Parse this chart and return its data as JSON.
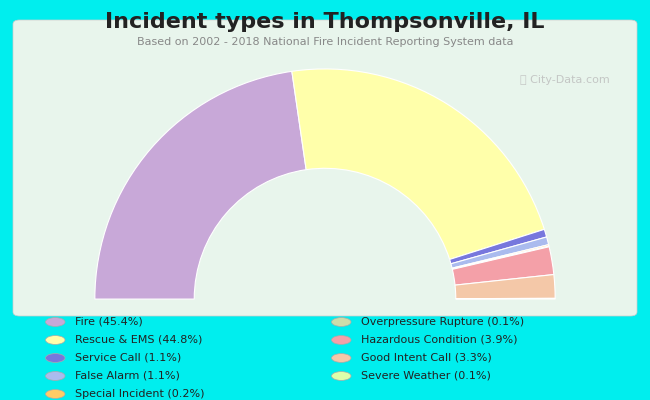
{
  "title": "Incident types in Thompsonville, IL",
  "subtitle": "Based on 2002 - 2018 National Fire Incident Reporting System data",
  "background_color": "#00EEEE",
  "chart_panel_color": "#e8f5ec",
  "segments": [
    {
      "label": "Fire (45.4%)",
      "value": 45.4,
      "color": "#c8a8d8"
    },
    {
      "label": "Rescue & EMS (44.8%)",
      "value": 44.8,
      "color": "#ffffaa"
    },
    {
      "label": "Service Call (1.1%)",
      "value": 1.1,
      "color": "#7777dd"
    },
    {
      "label": "False Alarm (1.1%)",
      "value": 1.1,
      "color": "#aabbee"
    },
    {
      "label": "Special Incident (0.2%)",
      "value": 0.2,
      "color": "#ffcc66"
    },
    {
      "label": "Overpressure Rupture (0.1%)",
      "value": 0.1,
      "color": "#ccddaa"
    },
    {
      "label": "Hazardous Condition (3.9%)",
      "value": 3.9,
      "color": "#f4a0a8"
    },
    {
      "label": "Good Intent Call (3.3%)",
      "value": 3.3,
      "color": "#f4c8a8"
    },
    {
      "label": "Severe Weather (0.1%)",
      "value": 0.1,
      "color": "#ddffaa"
    }
  ],
  "legend_left": [
    {
      "label": "Fire (45.4%)",
      "color": "#c8a8d8"
    },
    {
      "label": "Rescue & EMS (44.8%)",
      "color": "#ffffaa"
    },
    {
      "label": "Service Call (1.1%)",
      "color": "#7777dd"
    },
    {
      "label": "False Alarm (1.1%)",
      "color": "#aabbee"
    },
    {
      "label": "Special Incident (0.2%)",
      "color": "#ffcc66"
    }
  ],
  "legend_right": [
    {
      "label": "Overpressure Rupture (0.1%)",
      "color": "#ccddaa"
    },
    {
      "label": "Hazardous Condition (3.9%)",
      "color": "#f4a0a8"
    },
    {
      "label": "Good Intent Call (3.3%)",
      "color": "#f4c8a8"
    },
    {
      "label": "Severe Weather (0.1%)",
      "color": "#ddffaa"
    }
  ],
  "watermark": "City-Data.com",
  "title_fontsize": 16,
  "subtitle_fontsize": 8,
  "legend_fontsize": 8
}
